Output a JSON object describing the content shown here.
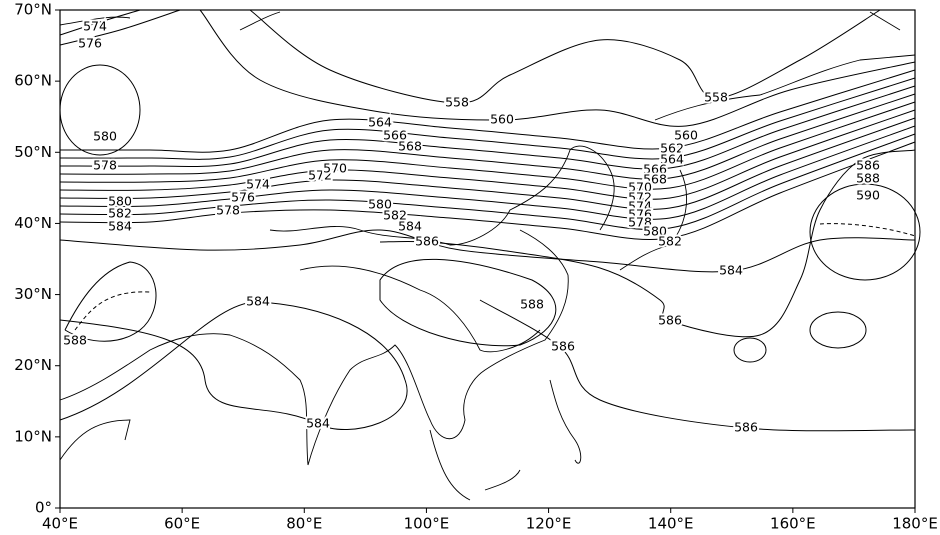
{
  "map": {
    "xlim": [
      40,
      180
    ],
    "ylim": [
      0,
      70
    ],
    "xticks": [
      {
        "value": 40,
        "label": "40°E"
      },
      {
        "value": 60,
        "label": "60°E"
      },
      {
        "value": 80,
        "label": "80°E"
      },
      {
        "value": 100,
        "label": "100°E"
      },
      {
        "value": 120,
        "label": "120°E"
      },
      {
        "value": 140,
        "label": "140°E"
      },
      {
        "value": 160,
        "label": "160°E"
      },
      {
        "value": 180,
        "label": "180°E"
      }
    ],
    "yticks": [
      {
        "value": 0,
        "label": "0°"
      },
      {
        "value": 10,
        "label": "10°N"
      },
      {
        "value": 20,
        "label": "20°N"
      },
      {
        "value": 30,
        "label": "30°N"
      },
      {
        "value": 40,
        "label": "40°N"
      },
      {
        "value": 50,
        "label": "50°N"
      },
      {
        "value": 60,
        "label": "60°N"
      },
      {
        "value": 70,
        "label": "70°N"
      }
    ],
    "contour_labels": [
      574,
      576,
      580,
      578,
      580,
      582,
      584,
      588,
      584,
      584,
      574,
      576,
      578,
      572,
      570,
      568,
      566,
      564,
      558,
      560,
      580,
      582,
      584,
      586,
      588,
      586,
      586,
      584,
      586,
      558,
      560,
      562,
      564,
      566,
      568,
      570,
      572,
      574,
      576,
      578,
      580,
      582,
      586,
      588,
      590
    ]
  }
}
